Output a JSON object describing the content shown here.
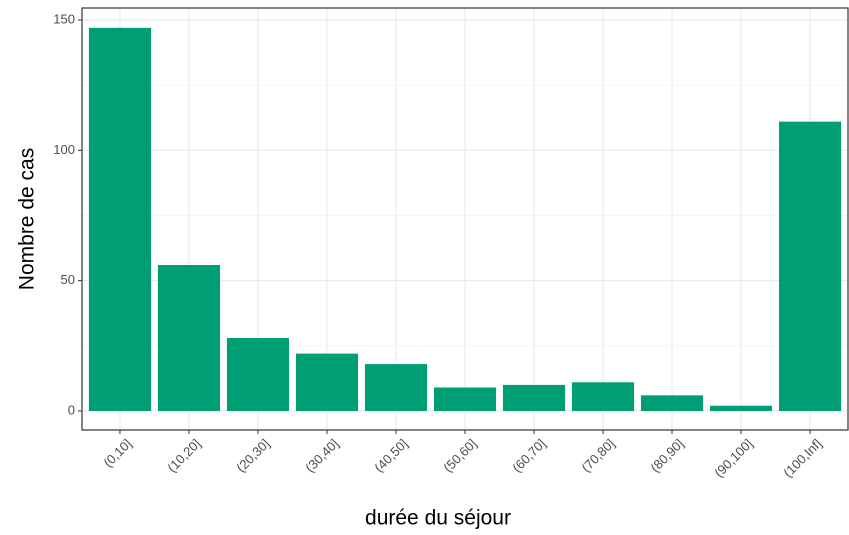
{
  "chart_data": {
    "type": "bar",
    "x_label": "durée du séjour",
    "y_label": "Nombre de cas",
    "categories": [
      "(0,10]",
      "(10,20]",
      "(20,30]",
      "(30,40]",
      "(40,50]",
      "(50,60]",
      "(60,70]",
      "(70,80]",
      "(80,90]",
      "(90,100]",
      "(100,Inf]"
    ],
    "values": [
      147,
      56,
      28,
      22,
      18,
      9,
      10,
      11,
      6,
      2,
      111
    ],
    "color": "#009e73",
    "ylim": [
      -7.3,
      154.6
    ],
    "yticks": [
      0,
      50,
      100,
      150
    ],
    "minor_yticks": [
      25,
      75,
      125
    ],
    "grid": true
  }
}
